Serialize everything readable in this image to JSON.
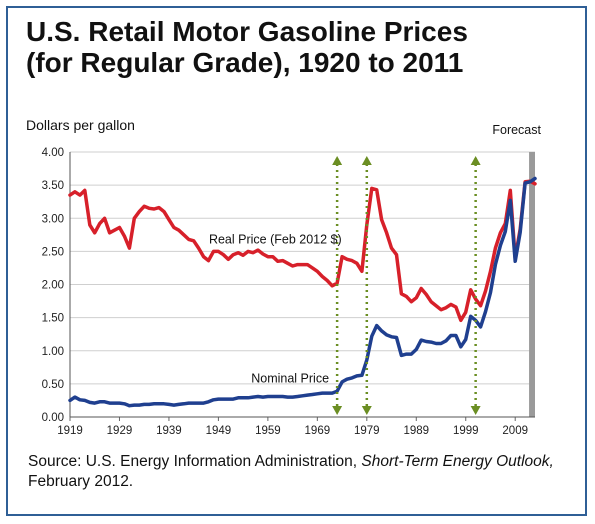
{
  "chart_data": {
    "type": "line",
    "title_line1": "U.S. Retail Motor Gasoline Prices",
    "title_line2": "(for Regular Grade), 1920 to 2011",
    "ylabel": "Dollars per gallon",
    "ylim": [
      0,
      4
    ],
    "xlim": [
      1919,
      2013
    ],
    "y_ticks": [
      "0.00",
      "0.50",
      "1.00",
      "1.50",
      "2.00",
      "2.50",
      "3.00",
      "3.50",
      "4.00"
    ],
    "x_ticks": [
      "1919",
      "1929",
      "1939",
      "1949",
      "1959",
      "1969",
      "1979",
      "1989",
      "1999",
      "2009"
    ],
    "forecast_label": "Forecast",
    "forecast_range": [
      2011.8,
      2013
    ],
    "event_lines_x": [
      1973,
      1979,
      2001
    ],
    "colors": {
      "real": "#d7202a",
      "nominal": "#1f3f8f",
      "event": "#6b8e23",
      "forecast": "#9a9a9a"
    },
    "series": [
      {
        "name": "Real Price (Feb 2012 $)",
        "x": [
          1919,
          1920,
          1921,
          1922,
          1923,
          1924,
          1925,
          1926,
          1927,
          1928,
          1929,
          1930,
          1931,
          1932,
          1933,
          1934,
          1935,
          1936,
          1937,
          1938,
          1939,
          1940,
          1941,
          1942,
          1943,
          1944,
          1945,
          1946,
          1947,
          1948,
          1949,
          1950,
          1951,
          1952,
          1953,
          1954,
          1955,
          1956,
          1957,
          1958,
          1959,
          1960,
          1961,
          1962,
          1963,
          1964,
          1965,
          1966,
          1967,
          1968,
          1969,
          1970,
          1971,
          1972,
          1973,
          1974,
          1975,
          1976,
          1977,
          1978,
          1979,
          1980,
          1981,
          1982,
          1983,
          1984,
          1985,
          1986,
          1987,
          1988,
          1989,
          1990,
          1991,
          1992,
          1993,
          1994,
          1995,
          1996,
          1997,
          1998,
          1999,
          2000,
          2001,
          2002,
          2003,
          2004,
          2005,
          2006,
          2007,
          2008,
          2009,
          2010,
          2011,
          2012,
          2013
        ],
        "values": [
          3.35,
          3.4,
          3.35,
          3.42,
          2.9,
          2.78,
          2.92,
          3.0,
          2.78,
          2.82,
          2.86,
          2.73,
          2.55,
          3.0,
          3.1,
          3.18,
          3.15,
          3.14,
          3.16,
          3.1,
          2.98,
          2.86,
          2.82,
          2.75,
          2.68,
          2.66,
          2.55,
          2.42,
          2.36,
          2.5,
          2.5,
          2.45,
          2.38,
          2.45,
          2.48,
          2.44,
          2.5,
          2.48,
          2.52,
          2.46,
          2.42,
          2.42,
          2.35,
          2.36,
          2.32,
          2.28,
          2.3,
          2.3,
          2.3,
          2.25,
          2.2,
          2.12,
          2.06,
          1.98,
          2.02,
          2.42,
          2.38,
          2.36,
          2.32,
          2.2,
          2.9,
          3.45,
          3.43,
          2.98,
          2.78,
          2.55,
          2.45,
          1.86,
          1.82,
          1.74,
          1.8,
          1.94,
          1.85,
          1.74,
          1.68,
          1.62,
          1.65,
          1.7,
          1.66,
          1.46,
          1.58,
          1.92,
          1.78,
          1.68,
          1.9,
          2.2,
          2.55,
          2.78,
          2.92,
          3.42,
          2.4,
          2.84,
          3.55,
          3.56,
          3.52
        ]
      },
      {
        "name": "Nominal Price",
        "x": [
          1919,
          1920,
          1921,
          1922,
          1923,
          1924,
          1925,
          1926,
          1927,
          1928,
          1929,
          1930,
          1931,
          1932,
          1933,
          1934,
          1935,
          1936,
          1937,
          1938,
          1939,
          1940,
          1941,
          1942,
          1943,
          1944,
          1945,
          1946,
          1947,
          1948,
          1949,
          1950,
          1951,
          1952,
          1953,
          1954,
          1955,
          1956,
          1957,
          1958,
          1959,
          1960,
          1961,
          1962,
          1963,
          1964,
          1965,
          1966,
          1967,
          1968,
          1969,
          1970,
          1971,
          1972,
          1973,
          1974,
          1975,
          1976,
          1977,
          1978,
          1979,
          1980,
          1981,
          1982,
          1983,
          1984,
          1985,
          1986,
          1987,
          1988,
          1989,
          1990,
          1991,
          1992,
          1993,
          1994,
          1995,
          1996,
          1997,
          1998,
          1999,
          2000,
          2001,
          2002,
          2003,
          2004,
          2005,
          2006,
          2007,
          2008,
          2009,
          2010,
          2011,
          2012,
          2013
        ],
        "values": [
          0.25,
          0.3,
          0.26,
          0.25,
          0.22,
          0.21,
          0.23,
          0.23,
          0.21,
          0.21,
          0.21,
          0.2,
          0.17,
          0.18,
          0.18,
          0.19,
          0.19,
          0.2,
          0.2,
          0.2,
          0.19,
          0.18,
          0.19,
          0.2,
          0.21,
          0.21,
          0.21,
          0.21,
          0.23,
          0.26,
          0.27,
          0.27,
          0.27,
          0.27,
          0.29,
          0.29,
          0.29,
          0.3,
          0.31,
          0.3,
          0.31,
          0.31,
          0.31,
          0.31,
          0.3,
          0.3,
          0.31,
          0.32,
          0.33,
          0.34,
          0.35,
          0.36,
          0.36,
          0.36,
          0.39,
          0.53,
          0.57,
          0.59,
          0.62,
          0.63,
          0.86,
          1.22,
          1.38,
          1.3,
          1.24,
          1.21,
          1.2,
          0.93,
          0.95,
          0.95,
          1.02,
          1.16,
          1.14,
          1.13,
          1.11,
          1.11,
          1.15,
          1.23,
          1.23,
          1.06,
          1.17,
          1.52,
          1.46,
          1.36,
          1.59,
          1.88,
          2.3,
          2.59,
          2.8,
          3.27,
          2.35,
          2.79,
          3.53,
          3.55,
          3.6
        ]
      }
    ],
    "annotations": {
      "real_label": "Real Price (Feb 2012 $)",
      "nominal_label": "Nominal Price"
    }
  },
  "source": {
    "prefix": "Source: U.S. Energy Information Administration,",
    "italic": "Short-Term Energy Outlook,",
    "suffix": "February 2012."
  }
}
